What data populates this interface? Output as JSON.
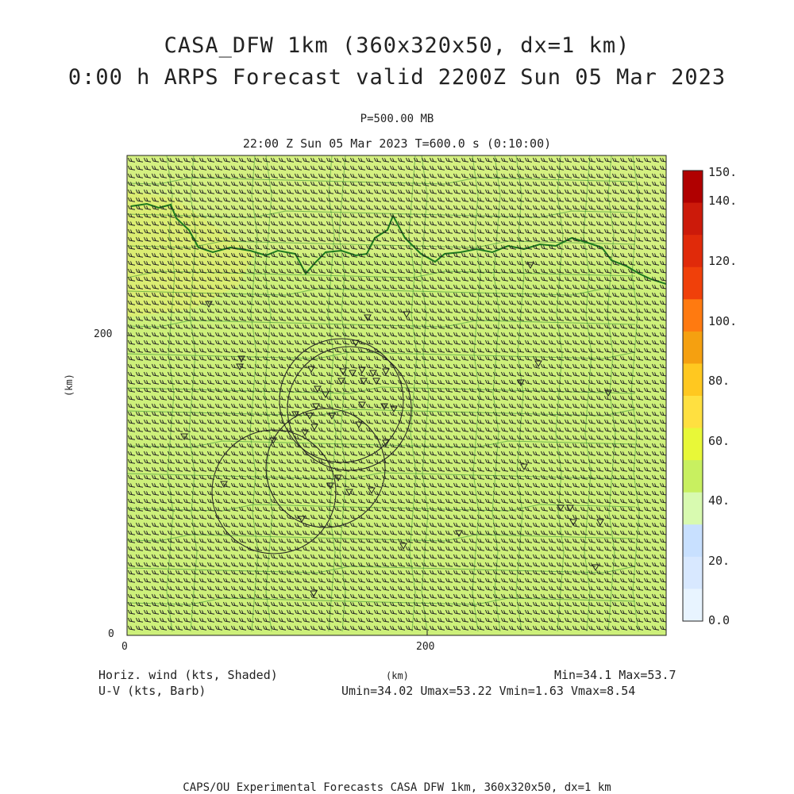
{
  "title_line1": "CASA_DFW 1km (360x320x50, dx=1 km)",
  "title_line2": "0:00 h ARPS Forecast valid 2200Z Sun 05 Mar 2023",
  "level_label": "P=500.00 MB",
  "valid_line": "22:00 Z Sun 05 Mar 2023    T=600.0 s (0:10:00)",
  "axes": {
    "y_unit": "(km)",
    "x_unit": "(km)",
    "y_ticks": [
      "200",
      "0"
    ],
    "x_ticks": [
      "0",
      "200"
    ],
    "x_range_km": [
      0,
      360
    ],
    "y_range_km": [
      0,
      320
    ]
  },
  "colorbar": {
    "labels": [
      "150.",
      "140.",
      "120.",
      "100.",
      "80.",
      "60.",
      "40.",
      "20.",
      "0.0"
    ],
    "colors": [
      "#b00000",
      "#cc1a0a",
      "#e02a0a",
      "#f0400a",
      "#ff7a10",
      "#f5a010",
      "#ffc820",
      "#ffe040",
      "#e8f838",
      "#c8f060",
      "#d8fab0",
      "#c8e0ff",
      "#d8e8ff",
      "#e8f4ff"
    ]
  },
  "field_colors": {
    "light": "#ccf089",
    "main": "#cdf07a",
    "strong": "#d6ec6c",
    "border": "#1e7a1e",
    "barb": "#222222",
    "marker": "#222222"
  },
  "legend": {
    "left_line1": "Horiz. wind (kts, Shaded)",
    "left_line2": "U-V (kts, Barb)",
    "min_max": "Min=34.1 Max=53.7",
    "uv_stats": "Umin=34.02 Umax=53.22 Vmin=1.63 Vmax=8.54"
  },
  "footer": "CAPS/OU Experimental Forecasts  CASA DFW 1km, 360x320x50, dx=1 km"
}
